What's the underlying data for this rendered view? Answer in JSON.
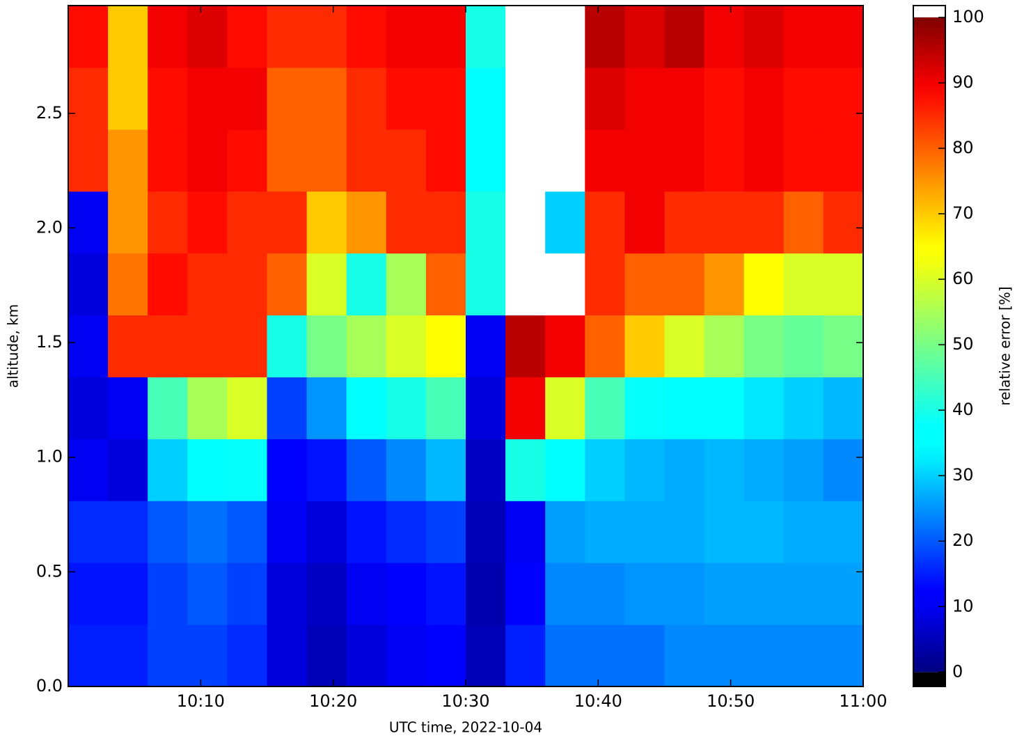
{
  "chart_data": {
    "type": "heatmap",
    "xlabel": "UTC time,  2022-10-04",
    "ylabel": "altitude, km",
    "colorbar_label": "relative error [%]",
    "colormap": "jet",
    "under_color": "#000000",
    "over_color": "#ffffff",
    "clim": [
      -2.2,
      101.8
    ],
    "cticks": [
      0,
      10,
      20,
      30,
      40,
      50,
      60,
      70,
      80,
      90,
      100
    ],
    "xlim": [
      "10:00",
      "11:00"
    ],
    "xticks": [
      "10:10",
      "10:20",
      "10:30",
      "10:40",
      "10:50",
      "11:00"
    ],
    "ylim": [
      0,
      2.97
    ],
    "yticks": [
      {
        "value": 0,
        "label": "0.0"
      },
      0.5,
      {
        "value": 1,
        "label": "1.0"
      },
      1.5,
      {
        "value": 2,
        "label": "2.0"
      },
      2.5
    ],
    "x_edges": [
      "10:00",
      "10:03",
      "10:06",
      "10:09",
      "10:12",
      "10:15",
      "10:18",
      "10:21",
      "10:24",
      "10:27",
      "10:30",
      "10:33",
      "10:36",
      "10:39",
      "10:42",
      "10:45",
      "10:48",
      "10:51",
      "10:54",
      "10:57",
      "11:00"
    ],
    "y_edges": [
      0,
      0.27,
      0.54,
      0.81,
      1.08,
      1.35,
      1.62,
      1.89,
      2.16,
      2.43,
      2.7,
      2.97
    ],
    "values": [
      [
        15,
        15,
        18,
        18,
        16,
        8,
        5,
        8,
        10,
        12,
        5,
        15,
        22,
        22,
        22,
        24,
        24,
        24,
        24,
        24
      ],
      [
        14,
        14,
        18,
        20,
        18,
        8,
        6,
        10,
        12,
        14,
        4,
        12,
        24,
        24,
        25,
        25,
        26,
        26,
        26,
        26
      ],
      [
        16,
        16,
        20,
        22,
        20,
        10,
        8,
        14,
        16,
        18,
        5,
        10,
        26,
        27,
        27,
        27,
        28,
        28,
        27,
        27
      ],
      [
        10,
        8,
        30,
        35,
        38,
        12,
        14,
        20,
        24,
        28,
        6,
        40,
        35,
        30,
        28,
        27,
        28,
        27,
        26,
        24
      ],
      [
        8,
        10,
        45,
        55,
        60,
        18,
        25,
        35,
        40,
        45,
        8,
        90,
        60,
        45,
        38,
        35,
        35,
        32,
        30,
        28
      ],
      [
        10,
        85,
        85,
        85,
        85,
        40,
        50,
        55,
        60,
        65,
        10,
        95,
        90,
        80,
        70,
        60,
        55,
        50,
        48,
        50
      ],
      [
        8,
        78,
        88,
        85,
        85,
        80,
        60,
        40,
        55,
        80,
        40,
        101,
        101,
        85,
        80,
        80,
        75,
        65,
        60,
        60
      ],
      [
        10,
        75,
        85,
        88,
        85,
        85,
        70,
        75,
        85,
        85,
        40,
        101,
        30,
        85,
        90,
        85,
        85,
        85,
        80,
        85
      ],
      [
        85,
        75,
        88,
        90,
        88,
        80,
        80,
        85,
        85,
        88,
        35,
        101,
        101,
        90,
        90,
        90,
        88,
        90,
        88,
        88
      ],
      [
        85,
        70,
        88,
        90,
        90,
        80,
        80,
        85,
        88,
        88,
        35,
        101,
        101,
        92,
        90,
        90,
        88,
        90,
        88,
        88
      ],
      [
        88,
        70,
        90,
        92,
        88,
        85,
        85,
        88,
        90,
        90,
        40,
        101,
        101,
        95,
        92,
        95,
        90,
        92,
        90,
        90
      ]
    ]
  }
}
